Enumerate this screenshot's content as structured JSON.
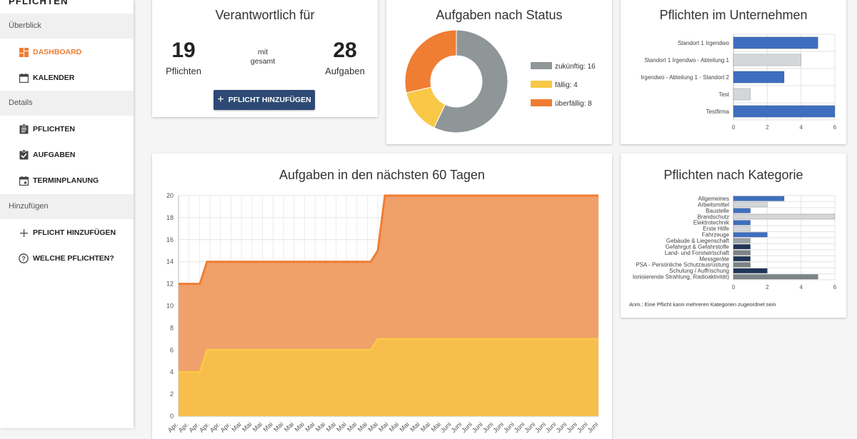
{
  "app": {
    "title": "PFLICHTEN"
  },
  "sidebar": {
    "sections": [
      {
        "label": "Überblick"
      },
      {
        "label": "Details"
      },
      {
        "label": "Hinzufügen"
      }
    ],
    "items": [
      {
        "label": "DASHBOARD",
        "icon": "dashboard-icon",
        "active": true
      },
      {
        "label": "KALENDER",
        "icon": "calendar-icon"
      },
      {
        "label": "PFLICHTEN",
        "icon": "clipboard-icon"
      },
      {
        "label": "AUFGABEN",
        "icon": "checkbox-icon"
      },
      {
        "label": "TERMINPLANUNG",
        "icon": "calendar-event-icon"
      },
      {
        "label": "PFLICHT HINZUFÜGEN",
        "icon": "plus-icon"
      },
      {
        "label": "WELCHE PFLICHTEN?",
        "icon": "help-icon"
      }
    ]
  },
  "colors": {
    "accent": "#ef7d32",
    "primary_button": "#2c4a74",
    "bar_blue": "#3e6fbf",
    "bar_gray": "#d4d7da",
    "bar_navy": "#1f3558",
    "bar_dark": "#7c8488"
  },
  "summary": {
    "title": "Verantwortlich für",
    "pflichten_count": "19",
    "pflichten_label": "Pflichten",
    "mid_line1": "mit",
    "mid_line2": "gesamt",
    "aufgaben_count": "28",
    "aufgaben_label": "Aufgaben",
    "button_label": "PFLICHT HINZUFÜGEN"
  },
  "status_chart": {
    "title": "Aufgaben nach Status",
    "chart_data": {
      "type": "pie",
      "labels": [
        "zukünftig: 16",
        "fällig: 4",
        "überfällig: 8"
      ],
      "values": [
        16,
        4,
        8
      ],
      "colors": [
        "#8f9697",
        "#f9c846",
        "#ef7d32"
      ],
      "legend": "right"
    }
  },
  "unternehmen_chart": {
    "title": "Pflichten im Unternehmen",
    "chart_data": {
      "type": "bar",
      "orientation": "horizontal",
      "categories": [
        "Standort 1 Irgendwo",
        "Standort 1 Irgendwo - Abteilung 1",
        "Irgendwo - Abteilung 1 - Standort 2",
        "Test",
        "Testfirma"
      ],
      "values": [
        5,
        4,
        3,
        1,
        6
      ],
      "colors": [
        "#3e6fbf",
        "#d4d7da",
        "#3e6fbf",
        "#d4d7da",
        "#3e6fbf"
      ],
      "xlim": [
        0,
        6
      ],
      "xticks": [
        "0",
        "2",
        "4",
        "6"
      ],
      "grid": true
    }
  },
  "next60_chart": {
    "title": "Aufgaben in den nächsten 60 Tagen",
    "chart_data": {
      "type": "area",
      "stacked": false,
      "ylim": [
        0,
        20
      ],
      "yticks": [
        "0",
        "2",
        "4",
        "6",
        "8",
        "10",
        "12",
        "14",
        "16",
        "18",
        "20"
      ],
      "x_tick_labels": [
        "Apr.",
        "Apr.",
        "Apr.",
        "Apr.",
        "Apr.",
        "Apr.",
        "Mai",
        "Mai",
        "Mai",
        "Mai",
        "Mai",
        "Mai",
        "Mai",
        "Mai",
        "Mai",
        "Mai",
        "Mai",
        "Mai",
        "Mai",
        "Mai",
        "Mai",
        "Mai",
        "Mai",
        "Mai",
        "Mai",
        "Mai",
        "Juni",
        "Juni",
        "Juni",
        "Juni",
        "Juni",
        "Juni",
        "Juni",
        "Juni",
        "Juni",
        "Juni",
        "Juni",
        "Juni",
        "Juni",
        "Juni",
        "Juni"
      ],
      "series": [
        {
          "values": [
            12,
            12,
            12,
            12,
            14,
            14,
            14,
            14,
            14,
            14,
            14,
            14,
            14,
            14,
            14,
            14,
            14,
            14,
            14,
            14,
            14,
            14,
            14,
            14,
            14,
            14,
            14,
            14,
            15,
            20,
            20,
            20,
            20,
            20,
            20,
            20,
            20,
            20,
            20,
            20,
            20,
            20,
            20,
            20,
            20,
            20,
            20,
            20,
            20,
            20,
            20,
            20,
            20,
            20,
            20,
            20,
            20,
            20,
            20,
            20
          ],
          "color": "#ef7d32",
          "fill": "#f0a06b"
        },
        {
          "values": [
            4,
            4,
            4,
            4,
            6,
            6,
            6,
            6,
            6,
            6,
            6,
            6,
            6,
            6,
            6,
            6,
            6,
            6,
            6,
            6,
            6,
            6,
            6,
            6,
            6,
            6,
            6,
            6,
            7,
            7,
            7,
            7,
            7,
            7,
            7,
            7,
            7,
            7,
            7,
            7,
            7,
            7,
            7,
            7,
            7,
            7,
            7,
            7,
            7,
            7,
            7,
            7,
            7,
            7,
            7,
            7,
            7,
            7,
            7,
            7
          ],
          "color": "#f9c846",
          "fill": "#f7be4d"
        }
      ],
      "grid": true
    }
  },
  "kategorie_chart": {
    "title": "Pflichten nach Kategorie",
    "note": "Anm.: Eine Pflicht kann mehreren Kategorien zugeordnet sein",
    "chart_data": {
      "type": "bar",
      "orientation": "horizontal",
      "categories": [
        "Allgemeines",
        "Arbeitsmittel",
        "Baustelle",
        "Brandschutz",
        "Elektrotechnik",
        "Erste Hilfe",
        "Fahrzeuge",
        "Gebäude & Liegenschaft",
        "Gefahrgut & Gefahrstoffe",
        "Land- und Forstwirtschaft",
        "Messgeräte",
        "PSA - Persönliche Schutzausrüstung",
        "Schulung / Auffrischung",
        "Ionisierende Strahlung, Radioaktivität)"
      ],
      "values": [
        3,
        2,
        1,
        6,
        1,
        1,
        2,
        1,
        1,
        1,
        1,
        1,
        2,
        5
      ],
      "colors": [
        "#3e6fbf",
        "#d4d7da",
        "#3e6fbf",
        "#d4d7da",
        "#3e6fbf",
        "#d4d7da",
        "#3e6fbf",
        "#9aa0a4",
        "#1f3558",
        "#7c8488",
        "#1f3558",
        "#7c8488",
        "#1f3558",
        "#7c8488"
      ],
      "xlim": [
        0,
        6
      ],
      "xticks": [
        "0",
        "2",
        "4",
        "6"
      ],
      "grid": true
    }
  }
}
